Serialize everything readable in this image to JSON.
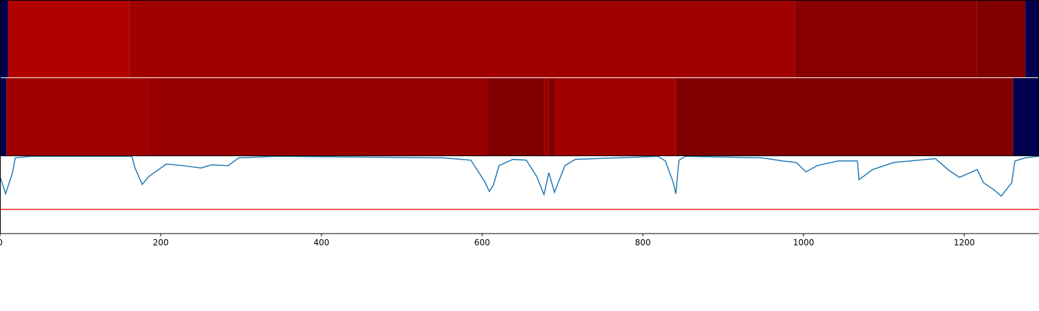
{
  "chart_data": {
    "type": "heatmap-line",
    "xlim": [
      0,
      1293
    ],
    "xticks": [
      0,
      200,
      400,
      600,
      800,
      1000,
      1200
    ],
    "strips": [
      {
        "segments": [
          {
            "start": 0,
            "end": 10,
            "color": "#000050"
          },
          {
            "start": 10,
            "end": 161,
            "color": "#b00000"
          },
          {
            "start": 161,
            "end": 989,
            "color": "#a10000"
          },
          {
            "start": 989,
            "end": 1216,
            "color": "#8a0000"
          },
          {
            "start": 1216,
            "end": 1276,
            "color": "#800000"
          },
          {
            "start": 1276,
            "end": 1293,
            "color": "#000050"
          }
        ]
      },
      {
        "segments": [
          {
            "start": 0,
            "end": 8,
            "color": "#000050"
          },
          {
            "start": 8,
            "end": 184,
            "color": "#a00000"
          },
          {
            "start": 184,
            "end": 606,
            "color": "#980000"
          },
          {
            "start": 606,
            "end": 677,
            "color": "#800000"
          },
          {
            "start": 677,
            "end": 683,
            "color": "#9a0000"
          },
          {
            "start": 683,
            "end": 690,
            "color": "#800000"
          },
          {
            "start": 690,
            "end": 841,
            "color": "#a00000"
          },
          {
            "start": 841,
            "end": 1261,
            "color": "#800000"
          },
          {
            "start": 1261,
            "end": 1293,
            "color": "#000050"
          }
        ]
      }
    ],
    "ylim": [
      0,
      1
    ],
    "threshold": 0.31,
    "threshold_color": "#e41a1c",
    "series": [
      {
        "color": "#1f77b4",
        "x": [
          0,
          7,
          15.5,
          19,
          39,
          164,
          168,
          177,
          185,
          207,
          228,
          250,
          263,
          284,
          297,
          345,
          552,
          586,
          603,
          609,
          614,
          621,
          638,
          655,
          668,
          677,
          683,
          690,
          703,
          716,
          819,
          828,
          838,
          841,
          845,
          853,
          948,
          974,
          991,
          1003,
          1017,
          1043,
          1067,
          1069,
          1086,
          1112,
          1164,
          1181,
          1194,
          1216,
          1224,
          1237,
          1246,
          1259,
          1263,
          1276,
          1293
        ],
        "values": [
          0.73,
          0.51,
          0.78,
          0.97,
          0.99,
          0.99,
          0.84,
          0.63,
          0.73,
          0.89,
          0.87,
          0.84,
          0.88,
          0.87,
          0.97,
          0.99,
          0.97,
          0.94,
          0.67,
          0.54,
          0.62,
          0.87,
          0.95,
          0.94,
          0.73,
          0.5,
          0.78,
          0.53,
          0.87,
          0.95,
          0.99,
          0.93,
          0.65,
          0.51,
          0.94,
          0.99,
          0.97,
          0.93,
          0.91,
          0.79,
          0.87,
          0.93,
          0.93,
          0.69,
          0.82,
          0.91,
          0.96,
          0.81,
          0.72,
          0.82,
          0.65,
          0.56,
          0.48,
          0.65,
          0.93,
          0.97,
          0.99
        ]
      }
    ]
  }
}
